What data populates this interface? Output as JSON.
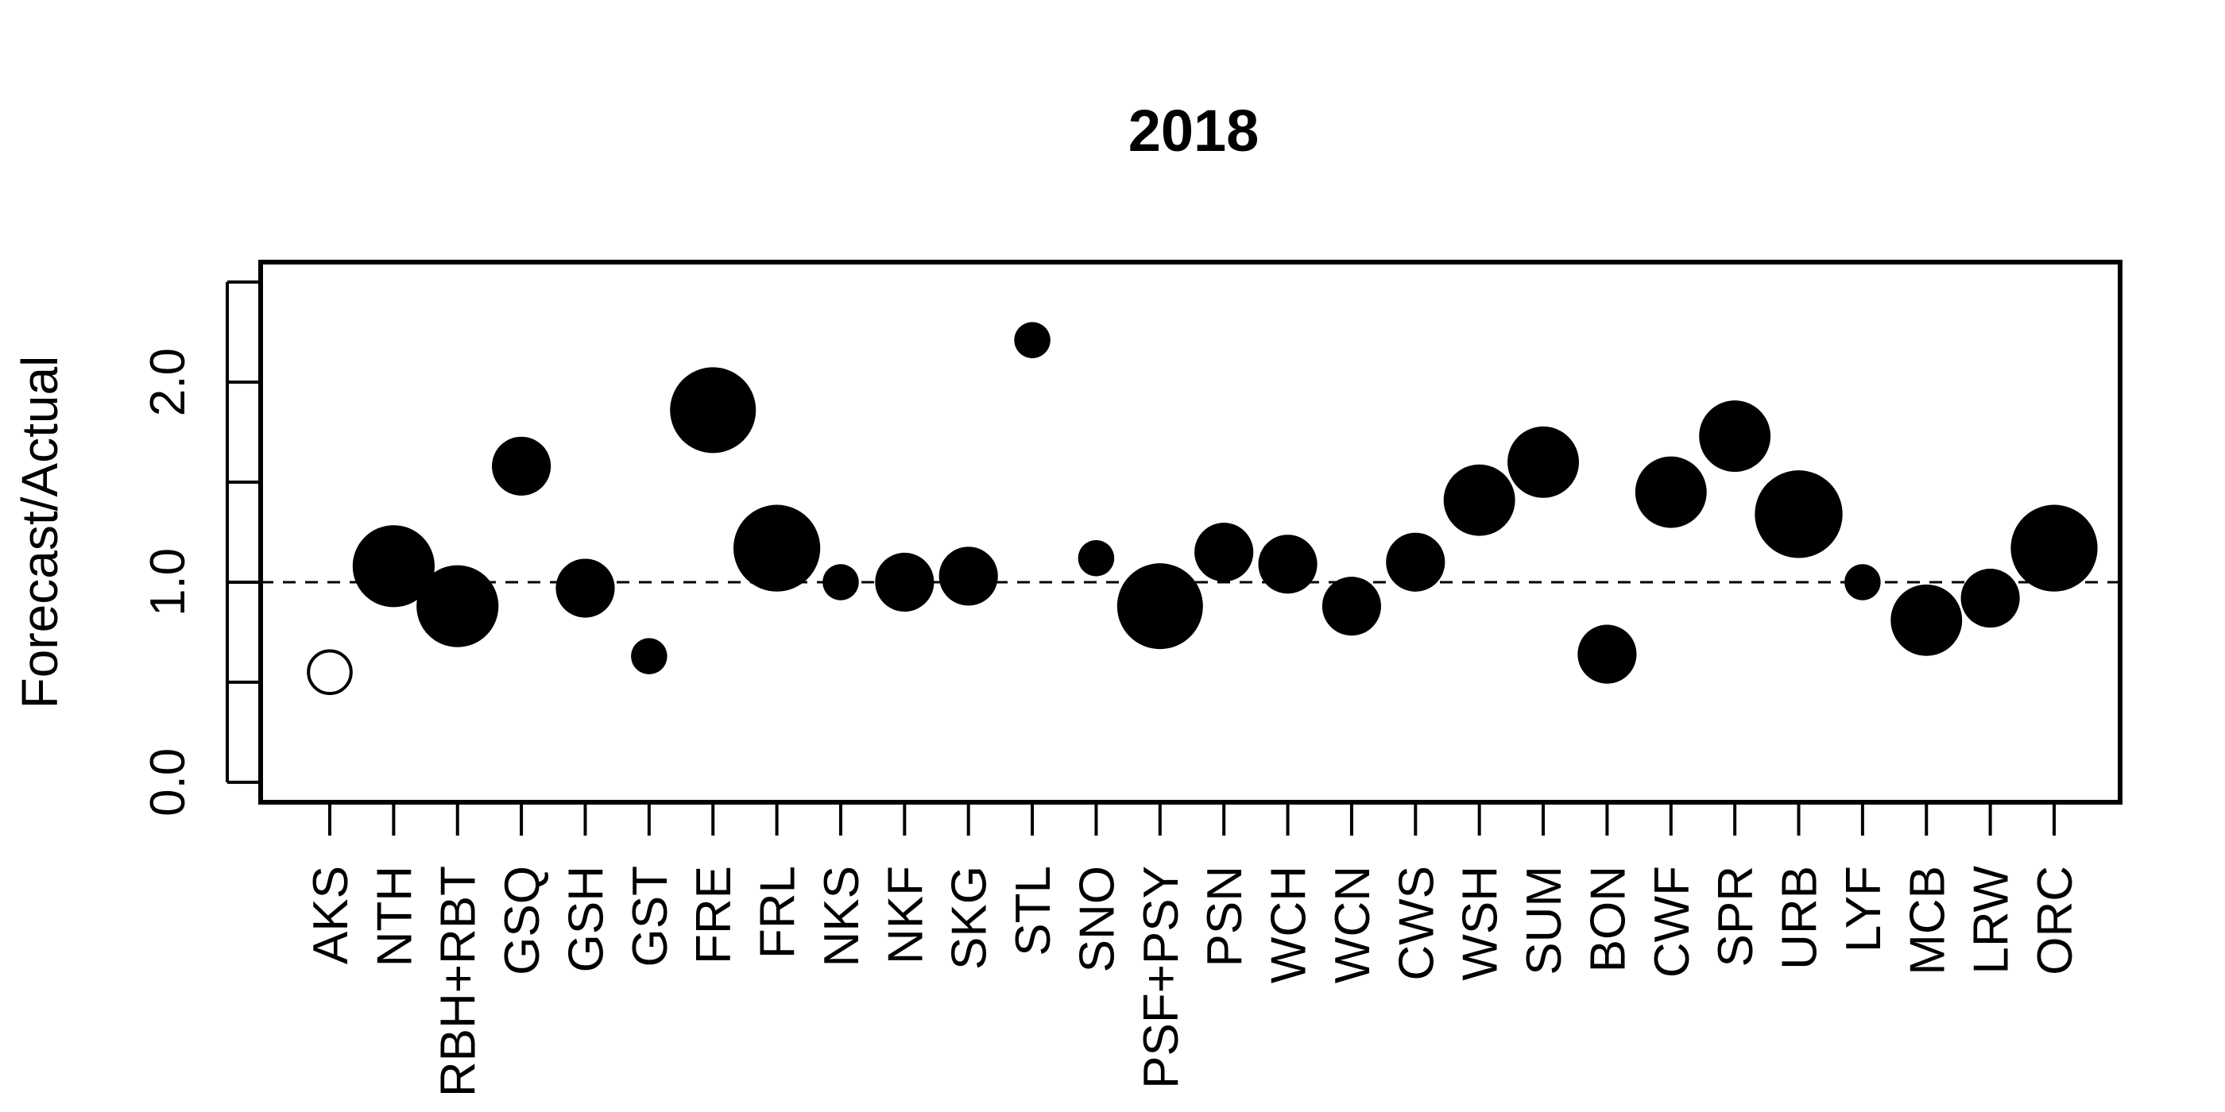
{
  "chart_data": {
    "type": "scatter",
    "title": "2018",
    "xlabel": "",
    "ylabel": "Forecast/Actual",
    "ylim": [
      -0.1,
      2.6
    ],
    "yticks": [
      0.0,
      0.5,
      1.0,
      1.5,
      2.0,
      2.5
    ],
    "ytick_labels": [
      "0.0",
      "",
      "1.0",
      "",
      "2.0",
      ""
    ],
    "reference_line": {
      "y": 1.0,
      "style": "dashed"
    },
    "categories": [
      "AKS",
      "NTH",
      "RBH+RBT",
      "GSQ",
      "GSH",
      "GST",
      "FRE",
      "FRL",
      "NKS",
      "NKF",
      "SKG",
      "STL",
      "SNO",
      "PSF+PSY",
      "PSN",
      "WCH",
      "WCN",
      "CWS",
      "WSH",
      "SUM",
      "BON",
      "CWF",
      "SPR",
      "URB",
      "LYF",
      "MCB",
      "LRW",
      "ORC"
    ],
    "values": [
      0.55,
      1.08,
      0.88,
      1.58,
      0.97,
      0.63,
      1.86,
      1.17,
      1.0,
      1.0,
      1.03,
      2.21,
      1.12,
      0.88,
      1.15,
      1.09,
      0.88,
      1.1,
      1.41,
      1.6,
      0.64,
      1.45,
      1.73,
      1.34,
      1.0,
      0.81,
      0.92,
      1.17
    ],
    "sizes": [
      1,
      4,
      4,
      2,
      2,
      0.7,
      4.4,
      4.5,
      0.7,
      2,
      2,
      0.7,
      0.7,
      4.4,
      2,
      2,
      2,
      2,
      3,
      3,
      2,
      3,
      3,
      4.6,
      0.7,
      3,
      2,
      4.5
    ],
    "filled": [
      false,
      true,
      true,
      true,
      true,
      true,
      true,
      true,
      true,
      true,
      true,
      true,
      true,
      true,
      true,
      true,
      true,
      true,
      true,
      true,
      true,
      true,
      true,
      true,
      true,
      true,
      true,
      true
    ],
    "marker_color": "#000000",
    "grid": false,
    "legend": "none"
  }
}
